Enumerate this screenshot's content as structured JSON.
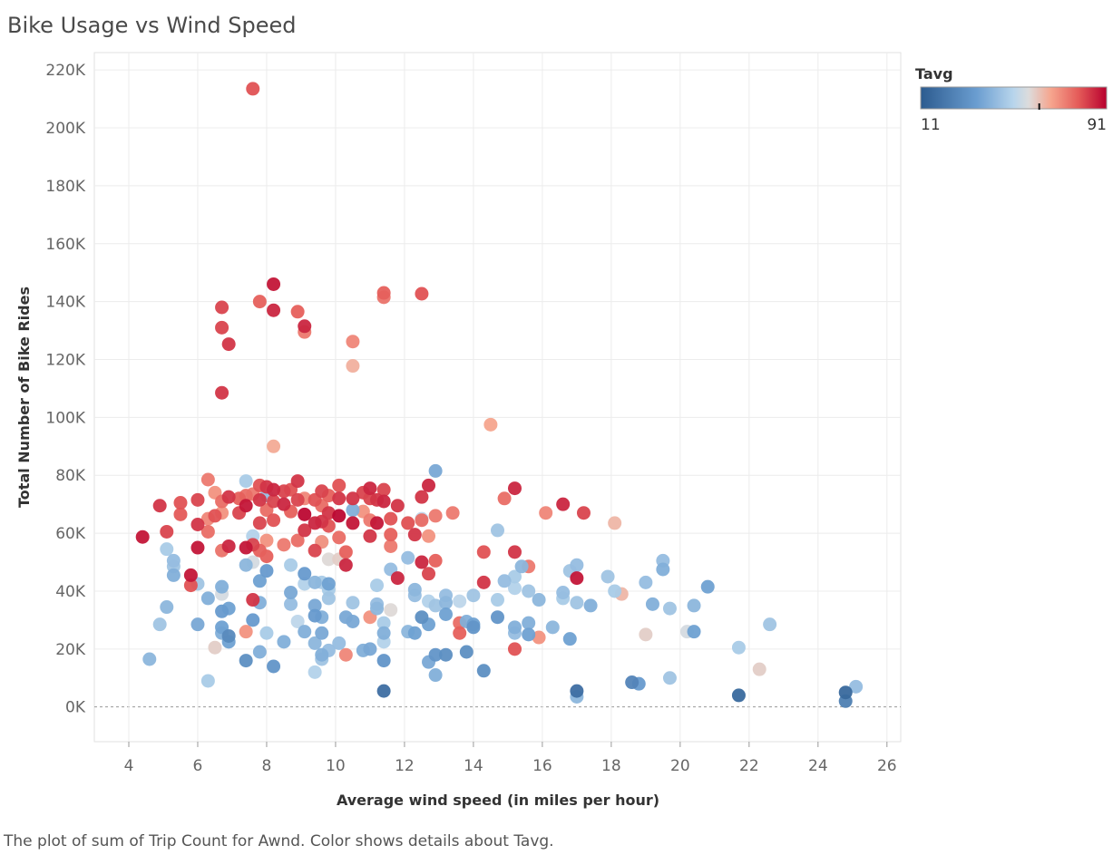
{
  "chart_data": {
    "type": "scatter",
    "title": "Bike Usage vs Wind Speed",
    "xlabel": "Average wind speed (in miles per hour)",
    "ylabel": "Total Number of Bike Rides",
    "xlim": [
      3,
      26.4
    ],
    "ylim": [
      -12000,
      226000
    ],
    "x_ticks": [
      4,
      6,
      8,
      10,
      12,
      14,
      16,
      18,
      20,
      22,
      24,
      26
    ],
    "y_ticks": [
      0,
      20000,
      40000,
      60000,
      80000,
      100000,
      120000,
      140000,
      160000,
      180000,
      200000,
      220000
    ],
    "y_tick_labels": [
      "0K",
      "20K",
      "40K",
      "60K",
      "80K",
      "100K",
      "120K",
      "140K",
      "160K",
      "180K",
      "200K",
      "220K"
    ],
    "grid": true,
    "color_legend": {
      "title": "Tavg",
      "min": 11,
      "max": 91,
      "low_color": "#2c5b8f",
      "mid_color": "#dcdcdc",
      "high_color": "#b8002e",
      "marker_value": 62,
      "placement": "top-right"
    },
    "points": [
      [
        7.6,
        213500,
        80
      ],
      [
        8.2,
        146000,
        88
      ],
      [
        12.5,
        142700,
        80
      ],
      [
        11.4,
        143000,
        78
      ],
      [
        11.4,
        141500,
        75
      ],
      [
        6.7,
        138000,
        82
      ],
      [
        7.8,
        140000,
        78
      ],
      [
        8.2,
        137000,
        86
      ],
      [
        8.9,
        136500,
        78
      ],
      [
        9.1,
        131500,
        86
      ],
      [
        9.1,
        129500,
        74
      ],
      [
        6.7,
        131000,
        82
      ],
      [
        6.9,
        125300,
        84
      ],
      [
        10.5,
        126200,
        72
      ],
      [
        10.5,
        117800,
        65
      ],
      [
        6.7,
        108500,
        84
      ],
      [
        14.5,
        97500,
        67
      ],
      [
        8.2,
        90000,
        66
      ],
      [
        4.4,
        58700,
        88
      ],
      [
        4.9,
        69500,
        84
      ],
      [
        5.1,
        60500,
        82
      ],
      [
        5.5,
        66500,
        79
      ],
      [
        5.5,
        70500,
        80
      ],
      [
        5.8,
        45500,
        88
      ],
      [
        5.8,
        42000,
        80
      ],
      [
        6.0,
        71500,
        82
      ],
      [
        6.0,
        63000,
        84
      ],
      [
        6.0,
        55000,
        88
      ],
      [
        6.3,
        78500,
        74
      ],
      [
        6.3,
        65000,
        72
      ],
      [
        6.3,
        60500,
        76
      ],
      [
        6.5,
        74000,
        70
      ],
      [
        6.5,
        66000,
        80
      ],
      [
        6.7,
        71000,
        76
      ],
      [
        6.7,
        67000,
        70
      ],
      [
        6.7,
        54000,
        75
      ],
      [
        6.9,
        72500,
        84
      ],
      [
        6.9,
        55500,
        86
      ],
      [
        7.2,
        72000,
        78
      ],
      [
        7.2,
        67000,
        82
      ],
      [
        7.4,
        73000,
        76
      ],
      [
        7.4,
        69500,
        88
      ],
      [
        7.4,
        55000,
        88
      ],
      [
        7.6,
        73500,
        74
      ],
      [
        7.6,
        56000,
        82
      ],
      [
        7.6,
        37000,
        84
      ],
      [
        7.8,
        76500,
        80
      ],
      [
        7.8,
        71500,
        84
      ],
      [
        7.8,
        63500,
        82
      ],
      [
        7.8,
        54000,
        78
      ],
      [
        8.0,
        76000,
        84
      ],
      [
        8.0,
        68000,
        76
      ],
      [
        8.0,
        57500,
        70
      ],
      [
        8.0,
        52000,
        78
      ],
      [
        8.2,
        75000,
        86
      ],
      [
        8.2,
        71000,
        82
      ],
      [
        8.2,
        64500,
        80
      ],
      [
        8.5,
        74500,
        82
      ],
      [
        8.5,
        70000,
        86
      ],
      [
        8.5,
        56000,
        74
      ],
      [
        8.7,
        75000,
        80
      ],
      [
        8.7,
        67500,
        78
      ],
      [
        8.9,
        78000,
        84
      ],
      [
        8.9,
        71500,
        82
      ],
      [
        8.9,
        57500,
        76
      ],
      [
        9.1,
        72000,
        72
      ],
      [
        9.1,
        66500,
        90
      ],
      [
        9.1,
        61000,
        84
      ],
      [
        9.4,
        71500,
        80
      ],
      [
        9.4,
        63500,
        86
      ],
      [
        9.4,
        54000,
        82
      ],
      [
        9.6,
        74500,
        82
      ],
      [
        9.6,
        69500,
        76
      ],
      [
        9.6,
        64000,
        84
      ],
      [
        9.6,
        57000,
        70
      ],
      [
        9.8,
        73000,
        78
      ],
      [
        9.8,
        67000,
        84
      ],
      [
        9.8,
        62500,
        80
      ],
      [
        10.1,
        76500,
        80
      ],
      [
        10.1,
        72000,
        84
      ],
      [
        10.1,
        66000,
        90
      ],
      [
        10.1,
        58500,
        76
      ],
      [
        10.3,
        53500,
        78
      ],
      [
        10.3,
        49000,
        86
      ],
      [
        10.5,
        72000,
        84
      ],
      [
        10.5,
        63500,
        88
      ],
      [
        10.8,
        74000,
        82
      ],
      [
        10.8,
        67500,
        70
      ],
      [
        11.0,
        75500,
        86
      ],
      [
        11.0,
        72000,
        82
      ],
      [
        11.0,
        64500,
        74
      ],
      [
        11.0,
        59000,
        84
      ],
      [
        11.2,
        71500,
        84
      ],
      [
        11.2,
        63500,
        88
      ],
      [
        11.4,
        75000,
        82
      ],
      [
        11.4,
        71000,
        86
      ],
      [
        11.6,
        65000,
        80
      ],
      [
        11.6,
        59500,
        78
      ],
      [
        11.6,
        55500,
        74
      ],
      [
        11.8,
        69500,
        84
      ],
      [
        11.8,
        44500,
        86
      ],
      [
        12.1,
        63500,
        80
      ],
      [
        12.3,
        59500,
        84
      ],
      [
        12.5,
        72500,
        84
      ],
      [
        12.5,
        64500,
        76
      ],
      [
        12.5,
        50000,
        86
      ],
      [
        12.7,
        76500,
        86
      ],
      [
        12.7,
        59000,
        70
      ],
      [
        12.7,
        46000,
        82
      ],
      [
        12.9,
        66000,
        74
      ],
      [
        12.9,
        50500,
        78
      ],
      [
        13.4,
        67000,
        74
      ],
      [
        13.6,
        29000,
        76
      ],
      [
        13.6,
        25500,
        78
      ],
      [
        14.3,
        53500,
        80
      ],
      [
        14.3,
        43000,
        84
      ],
      [
        14.9,
        72000,
        76
      ],
      [
        15.2,
        75500,
        86
      ],
      [
        15.2,
        53500,
        84
      ],
      [
        15.2,
        20000,
        80
      ],
      [
        15.6,
        48500,
        74
      ],
      [
        15.9,
        24000,
        70
      ],
      [
        16.1,
        67000,
        72
      ],
      [
        16.6,
        70000,
        86
      ],
      [
        17.0,
        44500,
        88
      ],
      [
        17.2,
        67000,
        82
      ],
      [
        18.1,
        63500,
        64
      ],
      [
        10.3,
        18000,
        72
      ],
      [
        11.0,
        31000,
        70
      ],
      [
        7.4,
        26000,
        70
      ],
      [
        4.6,
        16500,
        42
      ],
      [
        4.9,
        28500,
        46
      ],
      [
        5.1,
        34500,
        42
      ],
      [
        5.1,
        54500,
        48
      ],
      [
        5.3,
        50500,
        44
      ],
      [
        5.3,
        48500,
        46
      ],
      [
        5.3,
        45500,
        40
      ],
      [
        6.0,
        42500,
        46
      ],
      [
        6.0,
        28500,
        38
      ],
      [
        6.3,
        37500,
        40
      ],
      [
        6.3,
        9000,
        48
      ],
      [
        6.5,
        20500,
        60
      ],
      [
        6.7,
        41500,
        40
      ],
      [
        6.7,
        39000,
        56
      ],
      [
        6.7,
        33000,
        34
      ],
      [
        6.7,
        27500,
        36
      ],
      [
        6.7,
        25500,
        40
      ],
      [
        6.9,
        34000,
        36
      ],
      [
        6.9,
        24500,
        28
      ],
      [
        6.9,
        22500,
        36
      ],
      [
        7.4,
        78000,
        48
      ],
      [
        7.4,
        49000,
        42
      ],
      [
        7.4,
        16000,
        30
      ],
      [
        7.6,
        59000,
        50
      ],
      [
        7.6,
        50000,
        56
      ],
      [
        7.6,
        30000,
        34
      ],
      [
        7.8,
        43500,
        36
      ],
      [
        7.8,
        36000,
        40
      ],
      [
        7.8,
        19000,
        40
      ],
      [
        8.0,
        73000,
        44
      ],
      [
        8.0,
        47000,
        34
      ],
      [
        8.0,
        25500,
        48
      ],
      [
        8.2,
        14000,
        32
      ],
      [
        8.5,
        22500,
        40
      ],
      [
        8.7,
        49000,
        48
      ],
      [
        8.7,
        39500,
        38
      ],
      [
        8.7,
        35500,
        44
      ],
      [
        8.9,
        29500,
        52
      ],
      [
        9.1,
        46000,
        34
      ],
      [
        9.1,
        42500,
        50
      ],
      [
        9.1,
        26000,
        40
      ],
      [
        9.4,
        43000,
        42
      ],
      [
        9.4,
        35000,
        38
      ],
      [
        9.4,
        31500,
        34
      ],
      [
        9.4,
        22000,
        42
      ],
      [
        9.4,
        12000,
        50
      ],
      [
        9.6,
        57000,
        50
      ],
      [
        9.6,
        43000,
        48
      ],
      [
        9.6,
        31000,
        40
      ],
      [
        9.6,
        25500,
        38
      ],
      [
        9.6,
        18000,
        40
      ],
      [
        9.6,
        16500,
        46
      ],
      [
        9.8,
        51000,
        58
      ],
      [
        9.8,
        42500,
        36
      ],
      [
        9.8,
        40500,
        48
      ],
      [
        9.8,
        37500,
        46
      ],
      [
        9.8,
        19500,
        44
      ],
      [
        10.1,
        51000,
        60
      ],
      [
        10.1,
        22000,
        44
      ],
      [
        10.3,
        31000,
        38
      ],
      [
        10.5,
        68000,
        40
      ],
      [
        10.5,
        36000,
        46
      ],
      [
        10.5,
        29500,
        38
      ],
      [
        10.8,
        19500,
        40
      ],
      [
        11.0,
        20000,
        38
      ],
      [
        11.2,
        42000,
        48
      ],
      [
        11.2,
        35500,
        44
      ],
      [
        11.2,
        34000,
        42
      ],
      [
        11.4,
        29000,
        48
      ],
      [
        11.4,
        25500,
        40
      ],
      [
        11.4,
        22500,
        50
      ],
      [
        11.4,
        16000,
        32
      ],
      [
        11.4,
        5500,
        18
      ],
      [
        11.6,
        47500,
        44
      ],
      [
        11.6,
        33500,
        58
      ],
      [
        12.1,
        63500,
        58
      ],
      [
        12.1,
        51500,
        44
      ],
      [
        12.1,
        26000,
        42
      ],
      [
        12.3,
        40500,
        42
      ],
      [
        12.3,
        38500,
        44
      ],
      [
        12.3,
        25500,
        36
      ],
      [
        12.5,
        65000,
        52
      ],
      [
        12.5,
        31000,
        30
      ],
      [
        12.7,
        36500,
        50
      ],
      [
        12.7,
        28500,
        36
      ],
      [
        12.7,
        15500,
        38
      ],
      [
        12.9,
        81500,
        38
      ],
      [
        12.9,
        35000,
        46
      ],
      [
        12.9,
        18000,
        32
      ],
      [
        12.9,
        11000,
        40
      ],
      [
        13.2,
        38500,
        44
      ],
      [
        13.2,
        36000,
        42
      ],
      [
        13.2,
        32000,
        36
      ],
      [
        13.2,
        18000,
        30
      ],
      [
        13.6,
        36500,
        52
      ],
      [
        13.8,
        29500,
        40
      ],
      [
        13.8,
        19000,
        30
      ],
      [
        14.0,
        38500,
        46
      ],
      [
        14.0,
        28500,
        36
      ],
      [
        14.0,
        27500,
        32
      ],
      [
        14.3,
        12500,
        30
      ],
      [
        14.7,
        37000,
        48
      ],
      [
        14.7,
        31000,
        32
      ],
      [
        14.7,
        61000,
        46
      ],
      [
        14.9,
        43500,
        44
      ],
      [
        15.2,
        45000,
        48
      ],
      [
        15.2,
        41000,
        50
      ],
      [
        15.2,
        27500,
        40
      ],
      [
        15.2,
        25500,
        44
      ],
      [
        15.4,
        48500,
        42
      ],
      [
        15.6,
        40000,
        46
      ],
      [
        15.6,
        29000,
        40
      ],
      [
        15.6,
        25000,
        36
      ],
      [
        15.9,
        37000,
        42
      ],
      [
        16.3,
        27500,
        42
      ],
      [
        16.6,
        39500,
        44
      ],
      [
        16.6,
        37500,
        48
      ],
      [
        16.8,
        47000,
        46
      ],
      [
        16.8,
        23500,
        36
      ],
      [
        17.0,
        49000,
        44
      ],
      [
        17.0,
        36000,
        46
      ],
      [
        17.0,
        5500,
        18
      ],
      [
        17.0,
        3500,
        42
      ],
      [
        17.4,
        35000,
        40
      ],
      [
        17.9,
        45000,
        46
      ],
      [
        18.1,
        40000,
        48
      ],
      [
        18.3,
        39000,
        64
      ],
      [
        18.6,
        8500,
        26
      ],
      [
        18.8,
        8000,
        34
      ],
      [
        19.0,
        43000,
        44
      ],
      [
        19.0,
        25000,
        60
      ],
      [
        19.2,
        35500,
        40
      ],
      [
        19.5,
        50500,
        44
      ],
      [
        19.5,
        47500,
        40
      ],
      [
        19.7,
        34000,
        46
      ],
      [
        19.7,
        10000,
        46
      ],
      [
        20.2,
        26000,
        56
      ],
      [
        20.4,
        35000,
        42
      ],
      [
        20.4,
        26000,
        36
      ],
      [
        20.8,
        41500,
        36
      ],
      [
        21.7,
        20500,
        48
      ],
      [
        21.7,
        4000,
        16
      ],
      [
        22.3,
        13000,
        60
      ],
      [
        22.6,
        28500,
        46
      ],
      [
        24.8,
        5000,
        16
      ],
      [
        24.8,
        2000,
        24
      ],
      [
        25.1,
        7000,
        44
      ]
    ],
    "caption": "The plot of sum of Trip Count for Awnd.  Color shows details about Tavg."
  }
}
